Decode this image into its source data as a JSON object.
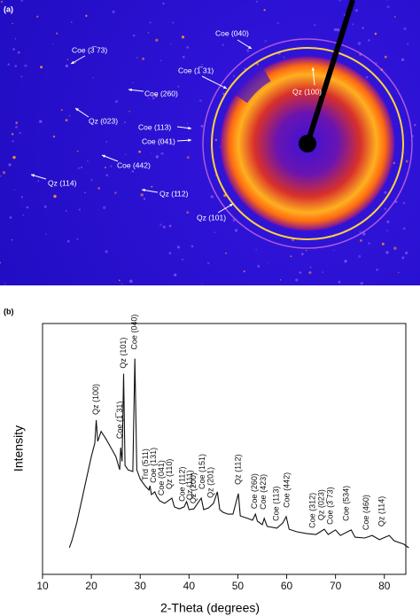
{
  "panel_a": {
    "label": "(a)",
    "labels": [
      "Coe (040)",
      "Coe (3̅ 73)",
      "Coe (1̅ 31)",
      "Qz (100)",
      "Coe (260)",
      "Qz (023)",
      "Coe (113)",
      "Coe (041)",
      "Coe (442)",
      "Qz (114)",
      "Qz (112)",
      "Qz (101)"
    ]
  },
  "chart_data": {
    "type": "line",
    "panel_label": "(b)",
    "x_label": "2-Theta (degrees)",
    "y_label": "Intensity",
    "color": "#111111",
    "x": [
      15.5,
      16,
      17,
      18,
      19,
      20,
      20.7,
      21.0,
      21.3,
      22,
      23,
      24,
      25,
      25.8,
      26.0,
      26.3,
      26.6,
      26.9,
      27.5,
      28.5,
      28.9,
      29.3,
      30,
      31,
      31.8,
      32.0,
      32.3,
      33,
      33.4,
      34,
      35,
      36.5,
      37,
      38,
      39,
      39.5,
      40,
      41,
      42.5,
      43,
      44,
      45,
      45.8,
      46.3,
      47,
      48,
      49,
      50.1,
      50.5,
      52,
      53,
      53.6,
      54,
      55,
      55.4,
      56,
      58,
      59.2,
      59.9,
      60.5,
      62,
      64,
      66,
      67.7,
      68.5,
      70,
      71,
      73.2,
      74,
      76,
      77.5,
      79,
      81,
      82,
      84,
      85
    ],
    "values": [
      10.6,
      13.4,
      20.5,
      29.3,
      38.2,
      47,
      52.3,
      61.5,
      53,
      57,
      54,
      50.5,
      47,
      41.7,
      50.5,
      45,
      80,
      43.5,
      41.7,
      41,
      86,
      41.7,
      38,
      35.3,
      33.6,
      35.3,
      31.8,
      32.9,
      31,
      29.3,
      28.3,
      30.4,
      26.9,
      26.1,
      26.9,
      29,
      25.8,
      26.1,
      30.4,
      25.8,
      26.5,
      28.3,
      32.9,
      25.8,
      24.7,
      24,
      24,
      32.2,
      23.3,
      22.3,
      21.6,
      24,
      21.2,
      19.8,
      22.3,
      19.1,
      18.4,
      20.5,
      23,
      18,
      17,
      16.3,
      15.9,
      18,
      15.9,
      17.7,
      15.5,
      17.7,
      14.8,
      14.5,
      15.5,
      13.8,
      15.5,
      13.4,
      12,
      10.6
    ],
    "xlim": [
      10,
      84.4
    ],
    "ylim": [
      0,
      100
    ],
    "xticks": [
      10,
      20,
      30,
      40,
      50,
      60,
      70,
      80
    ],
    "annotations": [
      {
        "text": "Qz (100)",
        "x": 21.0
      },
      {
        "text": "Coe (1̅ 31)",
        "x": 25.9
      },
      {
        "text": "Qz (101)",
        "x": 26.6
      },
      {
        "text": "Coe (040)",
        "x": 28.9
      },
      {
        "text": "Trd (511)",
        "x": 31.2
      },
      {
        "text": "Coe (131)",
        "x": 32.8
      },
      {
        "text": "Coe (041)",
        "x": 34.4
      },
      {
        "text": "Qz (110)",
        "x": 36.1
      },
      {
        "text": "Coe (112)",
        "x": 38.7
      },
      {
        "text": "Qz (111)",
        "x": 40.2
      },
      {
        "text": "Qz (200)",
        "x": 41.0
      },
      {
        "text": "Coe (151)",
        "x": 42.8
      },
      {
        "text": "Qz (201)",
        "x": 44.5
      },
      {
        "text": "Qz (112)",
        "x": 50.1
      },
      {
        "text": "Coe (260)",
        "x": 53.5
      },
      {
        "text": "Coe (423)",
        "x": 55.3
      },
      {
        "text": "Coe (113)",
        "x": 57.9
      },
      {
        "text": "Coe (442)",
        "x": 60.1
      },
      {
        "text": "Coe (312)",
        "x": 65.4
      },
      {
        "text": "Qz (023)",
        "x": 67.2
      },
      {
        "text": "Coe (3̅ 73)",
        "x": 69.0
      },
      {
        "text": "Coe (534)",
        "x": 72.3
      },
      {
        "text": "Coe (460)",
        "x": 76.3
      },
      {
        "text": "Qz (114)",
        "x": 79.5
      }
    ]
  }
}
